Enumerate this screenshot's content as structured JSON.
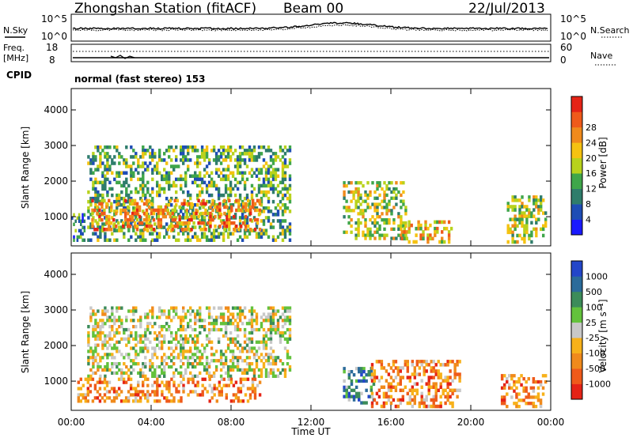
{
  "header": {
    "title": "Zhongshan Station (fitACF)",
    "beam": "Beam 00",
    "date": "22/Jul/2013"
  },
  "strip": {
    "nsky_label": "N.Sky",
    "nsky_ticks": [
      "10^5",
      "10^0"
    ],
    "nsearch_label": "N.Search",
    "nsearch_ticks": [
      "10^5",
      "10^0"
    ],
    "freq_label": "Freq.",
    "freq_unit": "[MHz]",
    "freq_ticks": [
      "18",
      "8"
    ],
    "nave_label": "Nave",
    "nave_ticks": [
      "60",
      "0"
    ],
    "cpid_label": "CPID",
    "cpid_text": "normal (fast stereo) 153"
  },
  "chart_data": [
    {
      "type": "heatmap",
      "name": "power",
      "ylabel": "Slant Range [km]",
      "xlabel": "Time UT",
      "xlim": [
        0,
        24
      ],
      "ylim": [
        180,
        4600
      ],
      "y_ticks": [
        1000,
        2000,
        3000,
        4000
      ],
      "x_ticks": [
        "00:00",
        "04:00",
        "08:00",
        "12:00",
        "16:00",
        "20:00",
        "00:00"
      ],
      "colorbar": {
        "label": "Power [dB]",
        "ticks": [
          "4",
          "8",
          "12",
          "16",
          "20",
          "24",
          "28"
        ],
        "colors": [
          "#1a1aff",
          "#1e4db5",
          "#2f7d6b",
          "#3fa64a",
          "#b8d21c",
          "#f5c211",
          "#f08a1c",
          "#ef5a1a",
          "#e52316"
        ]
      },
      "echo_regions": [
        {
          "x": [
            0.0,
            0.7
          ],
          "y": [
            300,
            1100
          ],
          "level": 2
        },
        {
          "x": [
            0.8,
            11.0
          ],
          "y": [
            300,
            3000
          ],
          "level": 3
        },
        {
          "x": [
            1.0,
            9.5
          ],
          "y": [
            600,
            1500
          ],
          "level": 6
        },
        {
          "x": [
            13.6,
            16.8
          ],
          "y": [
            350,
            2000
          ],
          "level": 4
        },
        {
          "x": [
            16.5,
            19.2
          ],
          "y": [
            250,
            900
          ],
          "level": 5
        },
        {
          "x": [
            21.8,
            23.8
          ],
          "y": [
            250,
            1600
          ],
          "level": 4
        }
      ]
    },
    {
      "type": "heatmap",
      "name": "velocity",
      "ylabel": "Slant Range [km]",
      "xlabel": "Time UT",
      "xlim": [
        0,
        24
      ],
      "ylim": [
        180,
        4600
      ],
      "y_ticks": [
        1000,
        2000,
        3000,
        4000
      ],
      "x_ticks": [
        "00:00",
        "04:00",
        "08:00",
        "12:00",
        "16:00",
        "20:00",
        "00:00"
      ],
      "colorbar": {
        "label": "Velocity  [m s⁻¹]",
        "ticks": [
          "1000",
          "500",
          "100",
          "25",
          "-25",
          "-100",
          "-500",
          "-1000"
        ],
        "colors": [
          "#2346c9",
          "#2b6b9a",
          "#3c8c5a",
          "#63c23c",
          "#c8c8c8",
          "#f7b11a",
          "#f08a1c",
          "#ef5a1a",
          "#e52316"
        ]
      },
      "echo_regions": [
        {
          "x": [
            0.8,
            11.0
          ],
          "y": [
            1100,
            3100
          ],
          "level": 4
        },
        {
          "x": [
            0.3,
            9.5
          ],
          "y": [
            400,
            1100
          ],
          "level": 6
        },
        {
          "x": [
            13.6,
            15.2
          ],
          "y": [
            350,
            1400
          ],
          "level": 2
        },
        {
          "x": [
            15.0,
            19.5
          ],
          "y": [
            250,
            1600
          ],
          "level": 6
        },
        {
          "x": [
            21.5,
            23.8
          ],
          "y": [
            250,
            1200
          ],
          "level": 6
        }
      ]
    }
  ],
  "xlabel": "Time UT"
}
